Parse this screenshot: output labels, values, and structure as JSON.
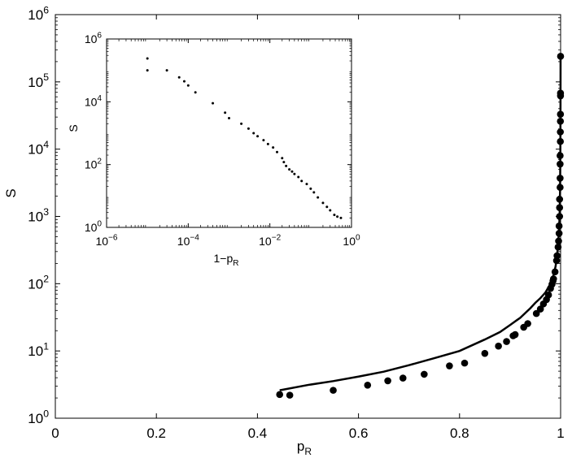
{
  "chart_data": [
    {
      "type": "scatter",
      "role": "main",
      "xlabel": "p",
      "xlabel_sub": "R",
      "ylabel": "S",
      "xlim": [
        0,
        1
      ],
      "ylim": [
        1,
        1000000
      ],
      "yscale": "log",
      "xticks": [
        {
          "v": 0,
          "label": "0"
        },
        {
          "v": 0.2,
          "label": "0.2"
        },
        {
          "v": 0.4,
          "label": "0.4"
        },
        {
          "v": 0.6,
          "label": "0.6"
        },
        {
          "v": 0.8,
          "label": "0.8"
        },
        {
          "v": 1,
          "label": "1"
        }
      ],
      "yticks": [
        {
          "exp": 0,
          "base": "10",
          "sup": "0"
        },
        {
          "exp": 1,
          "base": "10",
          "sup": "1"
        },
        {
          "exp": 2,
          "base": "10",
          "sup": "2"
        },
        {
          "exp": 3,
          "base": "10",
          "sup": "3"
        },
        {
          "exp": 4,
          "base": "10",
          "sup": "4"
        },
        {
          "exp": 5,
          "base": "10",
          "sup": "5"
        },
        {
          "exp": 6,
          "base": "10",
          "sup": "6"
        }
      ],
      "grid": false,
      "points": [
        [
          0.444,
          2.25
        ],
        [
          0.464,
          2.2
        ],
        [
          0.55,
          2.6
        ],
        [
          0.618,
          3.1
        ],
        [
          0.658,
          3.6
        ],
        [
          0.688,
          3.95
        ],
        [
          0.73,
          4.5
        ],
        [
          0.78,
          6.0
        ],
        [
          0.81,
          6.6
        ],
        [
          0.85,
          9.2
        ],
        [
          0.877,
          11.8
        ],
        [
          0.893,
          13.8
        ],
        [
          0.906,
          16.8
        ],
        [
          0.91,
          17.5
        ],
        [
          0.927,
          22.5
        ],
        [
          0.935,
          25.5
        ],
        [
          0.952,
          36
        ],
        [
          0.96,
          42
        ],
        [
          0.966,
          50
        ],
        [
          0.972,
          58
        ],
        [
          0.976,
          68
        ],
        [
          0.98,
          85
        ],
        [
          0.983,
          98
        ],
        [
          0.985,
          110
        ],
        [
          0.986,
          118
        ],
        [
          0.989,
          150
        ],
        [
          0.992,
          220
        ],
        [
          0.993,
          260
        ],
        [
          0.995,
          350
        ],
        [
          0.996,
          430
        ],
        [
          0.997,
          560
        ],
        [
          0.997,
          720
        ],
        [
          0.998,
          1000
        ],
        [
          0.998,
          1350
        ],
        [
          0.998,
          1800
        ],
        [
          0.999,
          2700
        ],
        [
          0.999,
          3700
        ],
        [
          0.999,
          6000
        ],
        [
          0.999,
          8000
        ],
        [
          0.9995,
          13000
        ],
        [
          0.9995,
          18000
        ],
        [
          0.9996,
          26000
        ],
        [
          0.9997,
          33000
        ],
        [
          0.9998,
          62000
        ],
        [
          0.9998,
          68000
        ],
        [
          0.99995,
          240000
        ]
      ],
      "curve": [
        [
          0.444,
          2.6
        ],
        [
          0.5,
          3.12
        ],
        [
          0.55,
          3.56
        ],
        [
          0.6,
          4.16
        ],
        [
          0.65,
          4.92
        ],
        [
          0.7,
          6.14
        ],
        [
          0.75,
          7.8
        ],
        [
          0.8,
          10.0
        ],
        [
          0.85,
          14.8
        ],
        [
          0.88,
          19.1
        ],
        [
          0.9,
          24.3
        ],
        [
          0.92,
          31.1
        ],
        [
          0.94,
          43.1
        ],
        [
          0.95,
          52
        ],
        [
          0.96,
          61
        ],
        [
          0.97,
          74
        ],
        [
          0.98,
          100
        ],
        [
          0.985,
          126
        ],
        [
          0.99,
          180
        ],
        [
          0.993,
          263
        ],
        [
          0.995,
          380
        ],
        [
          0.997,
          660
        ],
        [
          0.998,
          1000
        ],
        [
          0.999,
          2500
        ],
        [
          0.9995,
          10000
        ],
        [
          0.9998,
          50000
        ],
        [
          0.99995,
          250000
        ]
      ]
    },
    {
      "type": "scatter",
      "role": "inset",
      "xlabel": "1−p",
      "xlabel_sub": "R",
      "ylabel": "S",
      "xlim": [
        1e-06,
        1
      ],
      "ylim": [
        1,
        1000000
      ],
      "xscale": "log",
      "yscale": "log",
      "xticks": [
        {
          "exp": -6,
          "base": "10",
          "sup": "−6"
        },
        {
          "exp": -4,
          "base": "10",
          "sup": "−4"
        },
        {
          "exp": -2,
          "base": "10",
          "sup": "−2"
        },
        {
          "exp": 0,
          "base": "10",
          "sup": "0"
        }
      ],
      "yticks": [
        {
          "exp": 0,
          "base": "10",
          "sup": "0"
        },
        {
          "exp": 2,
          "base": "10",
          "sup": "2"
        },
        {
          "exp": 4,
          "base": "10",
          "sup": "4"
        },
        {
          "exp": 6,
          "base": "10",
          "sup": "6"
        }
      ],
      "grid": false,
      "points": [
        [
          1e-05,
          240000
        ],
        [
          1e-05,
          100000
        ],
        [
          3e-05,
          100000
        ],
        [
          6e-05,
          60000
        ],
        [
          8e-05,
          45000
        ],
        [
          0.0001,
          33000
        ],
        [
          0.00015,
          20000
        ],
        [
          0.0004,
          9000
        ],
        [
          0.0008,
          4500
        ],
        [
          0.001,
          3000
        ],
        [
          0.002,
          2000
        ],
        [
          0.003,
          1400
        ],
        [
          0.004,
          1000
        ],
        [
          0.005,
          800
        ],
        [
          0.007,
          600
        ],
        [
          0.009,
          450
        ],
        [
          0.012,
          350
        ],
        [
          0.015,
          250
        ],
        [
          0.02,
          160
        ],
        [
          0.022,
          120
        ],
        [
          0.025,
          90
        ],
        [
          0.03,
          70
        ],
        [
          0.035,
          60
        ],
        [
          0.04,
          50
        ],
        [
          0.05,
          40
        ],
        [
          0.06,
          30
        ],
        [
          0.08,
          24
        ],
        [
          0.1,
          17
        ],
        [
          0.12,
          13
        ],
        [
          0.15,
          9
        ],
        [
          0.2,
          6
        ],
        [
          0.25,
          4.5
        ],
        [
          0.3,
          3.5
        ],
        [
          0.38,
          2.5
        ],
        [
          0.45,
          2.2
        ],
        [
          0.55,
          2.0
        ]
      ]
    }
  ]
}
